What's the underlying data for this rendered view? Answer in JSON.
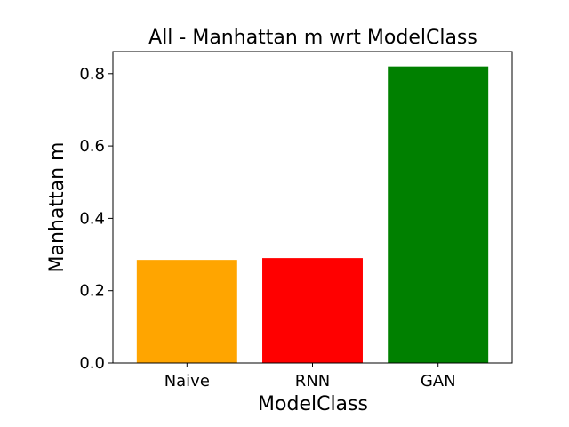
{
  "chart_data": {
    "type": "bar",
    "title": "All - Manhattan m wrt ModelClass",
    "xlabel": "ModelClass",
    "ylabel": "Manhattan m",
    "categories": [
      "Naive",
      "RNN",
      "GAN"
    ],
    "values": [
      0.285,
      0.29,
      0.82
    ],
    "colors": [
      "#ffa500",
      "#ff0000",
      "#008000"
    ],
    "ylim": [
      0,
      0.861
    ],
    "yticks": [
      0.0,
      0.2,
      0.4,
      0.6,
      0.8
    ],
    "ytick_labels": [
      "0.0",
      "0.2",
      "0.4",
      "0.6",
      "0.8"
    ],
    "grid": false,
    "legend": "none"
  }
}
